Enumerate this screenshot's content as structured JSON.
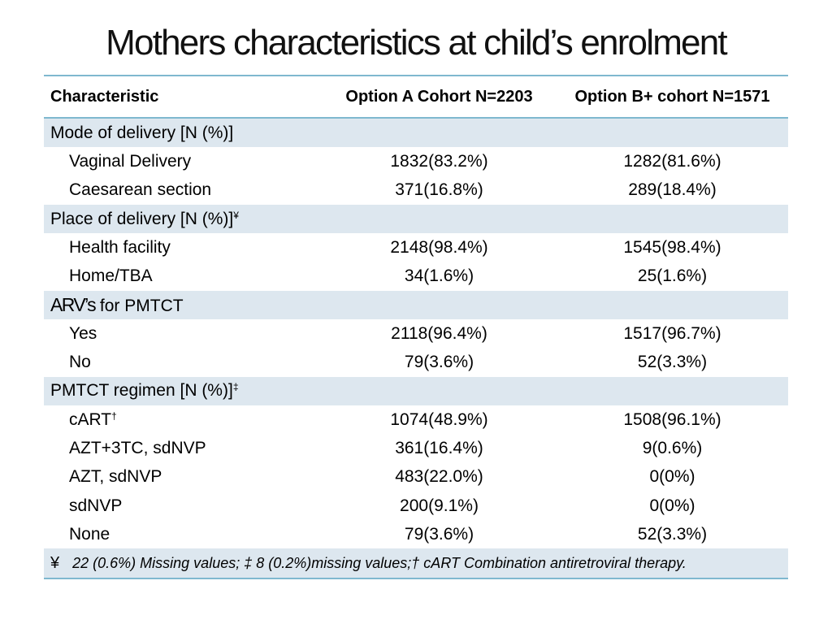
{
  "title": "Mothers characteristics at child’s enrolment",
  "table": {
    "headers": [
      "Characteristic",
      "Option A Cohort N=2203",
      "Option B+ cohort N=1571"
    ],
    "sections": [
      {
        "label": "Mode of delivery [N (%)]",
        "rows": [
          {
            "label": "Vaginal Delivery",
            "a": "1832(83.2%)",
            "b": "1282(81.6%)"
          },
          {
            "label": "Caesarean section",
            "a": "371(16.8%)",
            "b": "289(18.4%)"
          }
        ]
      },
      {
        "label": "Place of delivery [N (%)]",
        "mark": "¥",
        "rows": [
          {
            "label": "Health facility",
            "a": "2148(98.4%)",
            "b": "1545(98.4%)"
          },
          {
            "label": "Home/TBA",
            "a": "34(1.6%)",
            "b": "25(1.6%)"
          }
        ]
      },
      {
        "label_prefix": "ARV’s",
        "label": "for PMTCT",
        "rows": [
          {
            "label": "Yes",
            "a": "2118(96.4%)",
            "b": "1517(96.7%)"
          },
          {
            "label": "No",
            "a": "79(3.6%)",
            "b": "52(3.3%)"
          }
        ]
      },
      {
        "label": "PMTCT regimen [N (%)]",
        "mark": "‡",
        "rows": [
          {
            "label": "cART",
            "mark": "†",
            "a": "1074(48.9%)",
            "b": "1508(96.1%)"
          },
          {
            "label": "AZT+3TC, sdNVP",
            "a": "361(16.4%)",
            "b": "9(0.6%)"
          },
          {
            "label": "AZT, sdNVP",
            "a": "483(22.0%)",
            "b": "0(0%)"
          },
          {
            "label": "sdNVP",
            "a": "200(9.1%)",
            "b": "0(0%)"
          },
          {
            "label": "None",
            "a": "79(3.6%)",
            "b": "52(3.3%)"
          }
        ]
      }
    ],
    "footnote": {
      "symbol": "¥",
      "text": "22 (0.6%) Missing values; ‡ 8 (0.2%)missing values;† cART Combination antiretroviral therapy."
    }
  }
}
